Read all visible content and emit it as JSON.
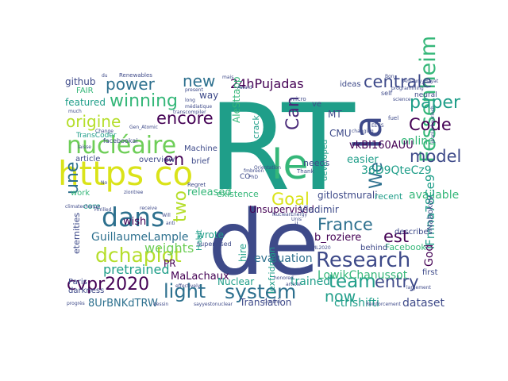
{
  "word_cloud": {
    "background": "#ffffff",
    "palette": {
      "teal": "#1f9e89",
      "navy": "#3e4a89",
      "indigo": "#2d708e",
      "green": "#35b779",
      "lime": "#6ece58",
      "yellow": "#b5de2b",
      "bright": "#dae319",
      "purple": "#482878",
      "deep": "#440154",
      "blue": "#31688e"
    },
    "words": [
      {
        "text": "RT",
        "color": "teal"
      },
      {
        "text": "de",
        "color": "navy"
      },
      {
        "text": "https co",
        "color": "bright"
      },
      {
        "text": "le",
        "color": "green"
      },
      {
        "text": "la",
        "color": "navy"
      },
      {
        "text": "Fessenheim",
        "color": "green"
      },
      {
        "text": "nucléaire",
        "color": "lime"
      },
      {
        "text": "dans",
        "color": "indigo"
      },
      {
        "text": "Research",
        "color": "navy"
      },
      {
        "text": "cvpr2020",
        "color": "deep"
      },
      {
        "text": "system",
        "color": "indigo"
      },
      {
        "text": "dchaplot",
        "color": "yellow"
      },
      {
        "text": "power",
        "color": "indigo"
      },
      {
        "text": "winning",
        "color": "green"
      },
      {
        "text": "new",
        "color": "indigo"
      },
      {
        "text": "origine",
        "color": "yellow"
      },
      {
        "text": "encore",
        "color": "deep"
      },
      {
        "text": "paper",
        "color": "teal"
      },
      {
        "text": "centrale",
        "color": "navy"
      },
      {
        "text": "Code",
        "color": "deep"
      },
      {
        "text": "model",
        "color": "navy"
      },
      {
        "text": "light",
        "color": "indigo"
      },
      {
        "text": "team",
        "color": "teal"
      },
      {
        "text": "entry",
        "color": "navy"
      },
      {
        "text": "now",
        "color": "teal"
      },
      {
        "text": "une",
        "color": "indigo"
      },
      {
        "text": "en",
        "color": "deep"
      },
      {
        "text": "We",
        "color": "indigo"
      },
      {
        "text": "Can",
        "color": "purple"
      },
      {
        "text": "Goal",
        "color": "bright"
      },
      {
        "text": "France",
        "color": "indigo"
      },
      {
        "text": "est",
        "color": "deep"
      },
      {
        "text": "two",
        "color": "yellow"
      },
      {
        "text": "24hPujadas",
        "color": "deep"
      },
      {
        "text": "weights",
        "color": "lime"
      },
      {
        "text": "pretrained",
        "color": "teal"
      },
      {
        "text": "GuillaumeLample",
        "color": "indigo"
      },
      {
        "text": "evaluation",
        "color": "indigo"
      },
      {
        "text": "LowikChanussot",
        "color": "green"
      },
      {
        "text": "trained",
        "color": "teal"
      },
      {
        "text": "ctrlshifti",
        "color": "teal"
      },
      {
        "text": "dataset",
        "color": "navy"
      },
      {
        "text": "available",
        "color": "green"
      },
      {
        "text": "iFmna78Ce9",
        "color": "teal"
      },
      {
        "text": "God",
        "color": "deep"
      },
      {
        "text": "online",
        "color": "green"
      },
      {
        "text": "36D9QteCz9",
        "color": "teal"
      },
      {
        "text": "vkBI160AUU",
        "color": "deep"
      },
      {
        "text": "easier",
        "color": "teal"
      },
      {
        "text": "CMU",
        "color": "navy"
      },
      {
        "text": "MT",
        "color": "navy"
      },
      {
        "text": "github",
        "color": "navy"
      },
      {
        "text": "featured",
        "color": "teal"
      },
      {
        "text": "b_roziere",
        "color": "deep"
      },
      {
        "text": "released",
        "color": "green"
      },
      {
        "text": "existence",
        "color": "green"
      },
      {
        "text": "Unsupervised",
        "color": "deep"
      },
      {
        "text": "Vladimir",
        "color": "navy"
      },
      {
        "text": "gitlostmurali",
        "color": "navy"
      },
      {
        "text": "8UrBNKdTRW",
        "color": "indigo"
      },
      {
        "text": "Translation",
        "color": "navy"
      },
      {
        "text": "MaLachaux",
        "color": "deep"
      },
      {
        "text": "Nuclear",
        "color": "teal"
      },
      {
        "text": "wish",
        "color": "deep"
      },
      {
        "text": "wrote",
        "color": "teal"
      },
      {
        "text": "PR",
        "color": "deep"
      },
      {
        "text": "Paris",
        "color": "navy"
      },
      {
        "text": "darkness",
        "color": "navy"
      },
      {
        "text": "eternities",
        "color": "navy"
      },
      {
        "text": "core",
        "color": "teal"
      },
      {
        "text": "work",
        "color": "green"
      },
      {
        "text": "article",
        "color": "navy"
      },
      {
        "text": "overview",
        "color": "navy"
      },
      {
        "text": "brief",
        "color": "navy"
      },
      {
        "text": "way",
        "color": "navy"
      },
      {
        "text": "Machine",
        "color": "navy"
      },
      {
        "text": "AleSttapp",
        "color": "green"
      },
      {
        "text": "needs",
        "color": "navy"
      },
      {
        "text": "developed",
        "color": "teal"
      },
      {
        "text": "recent",
        "color": "teal"
      },
      {
        "text": "Facebook",
        "color": "green"
      },
      {
        "text": "Nabokov",
        "color": "navy"
      },
      {
        "text": "describes",
        "color": "navy"
      },
      {
        "text": "behind",
        "color": "navy"
      },
      {
        "text": "first",
        "color": "navy"
      },
      {
        "text": "Habit",
        "color": "teal"
      },
      {
        "text": "hire",
        "color": "teal"
      },
      {
        "text": "lexfridman",
        "color": "teal"
      },
      {
        "text": "crack",
        "color": "teal"
      },
      {
        "text": "ideas",
        "color": "navy"
      },
      {
        "text": "neural",
        "color": "navy"
      },
      {
        "text": "FAIR",
        "color": "green"
      },
      {
        "text": "TransCoder",
        "color": "teal"
      },
      {
        "text": "facebookai",
        "color": "navy"
      },
      {
        "text": "Renewables",
        "color": "navy"
      },
      {
        "text": "Thank",
        "color": "navy"
      },
      {
        "text": "self",
        "color": "navy"
      },
      {
        "text": "Bon",
        "color": "navy"
      },
      {
        "text": "Regret",
        "color": "navy"
      },
      {
        "text": "fmbreon",
        "color": "navy"
      },
      {
        "text": "supervised",
        "color": "navy"
      },
      {
        "text": "Will",
        "color": "navy"
      },
      {
        "text": "anti",
        "color": "navy"
      },
      {
        "text": "Thrilled",
        "color": "navy"
      },
      {
        "text": "progrès",
        "color": "navy"
      },
      {
        "text": "Control",
        "color": "navy"
      },
      {
        "text": "sayyestonuclear",
        "color": "navy"
      },
      {
        "text": "dessin",
        "color": "navy"
      },
      {
        "text": "NuclearEnergy",
        "color": "navy"
      },
      {
        "text": "ICML2020",
        "color": "navy"
      },
      {
        "text": "honored",
        "color": "navy"
      },
      {
        "text": "climatechange",
        "color": "navy"
      },
      {
        "text": "receive",
        "color": "navy"
      },
      {
        "text": "laisse",
        "color": "navy"
      },
      {
        "text": "Gen_Atomic",
        "color": "navy"
      },
      {
        "text": "Award",
        "color": "navy"
      },
      {
        "text": "mais",
        "color": "navy"
      },
      {
        "text": "science",
        "color": "navy"
      },
      {
        "text": "programming",
        "color": "navy"
      },
      {
        "text": "Amaury_Hayat",
        "color": "navy"
      },
      {
        "text": "changing",
        "color": "navy"
      },
      {
        "text": "Reinforcement",
        "color": "navy"
      },
      {
        "text": "médiatique",
        "color": "navy"
      },
      {
        "text": "du",
        "color": "navy"
      },
      {
        "text": "much",
        "color": "navy"
      },
      {
        "text": "Change",
        "color": "navy"
      },
      {
        "text": "transcompiler",
        "color": "navy"
      },
      {
        "text": "Orientation",
        "color": "navy"
      },
      {
        "text": "CO",
        "color": "navy"
      },
      {
        "text": "PhD",
        "color": "navy"
      },
      {
        "text": "jeanlarbouriech",
        "color": "navy"
      },
      {
        "text": "EECS",
        "color": "navy"
      },
      {
        "text": "article",
        "color": "navy"
      },
      {
        "text": "largement",
        "color": "navy"
      },
      {
        "text": "fuel",
        "color": "navy"
      },
      {
        "text": "ve",
        "color": "navy"
      },
      {
        "text": "il",
        "color": "navy"
      },
      {
        "text": "No",
        "color": "navy"
      },
      {
        "text": "micro",
        "color": "navy"
      },
      {
        "text": "long",
        "color": "navy"
      },
      {
        "text": "present",
        "color": "navy"
      },
      {
        "text": "Unis",
        "color": "navy"
      },
      {
        "text": "ziontree",
        "color": "navy"
      },
      {
        "text": "effectively",
        "color": "navy"
      }
    ]
  }
}
